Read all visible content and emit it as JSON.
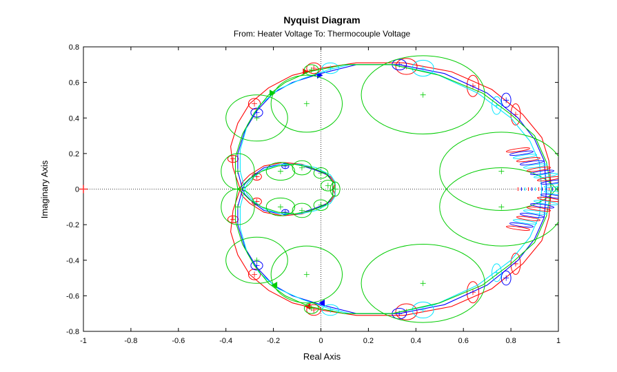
{
  "chart_data": {
    "type": "line",
    "title": "Nyquist Diagram",
    "subtitle": "From: Heater Voltage  To: Thermocouple Voltage",
    "xlabel": "Real Axis",
    "ylabel": "Imaginary Axis",
    "xlim": [
      -1,
      1
    ],
    "ylim": [
      -0.8,
      0.8
    ],
    "xticks": [
      "-1",
      "-0.8",
      "-0.6",
      "-0.4",
      "-0.2",
      "0",
      "0.2",
      "0.4",
      "0.6",
      "0.8",
      "1"
    ],
    "yticks": [
      "-0.8",
      "-0.6",
      "-0.4",
      "-0.2",
      "0",
      "0.2",
      "0.4",
      "0.6",
      "0.8"
    ],
    "critical_point": {
      "x": -1,
      "y": 0,
      "color": "#ff3333"
    },
    "grid": "dotted crosshair at origin",
    "colors": {
      "red": "#ff0000",
      "blue": "#0000ff",
      "cyan": "#00e5ff",
      "green": "#00cc00",
      "axes": "#000000"
    },
    "series": [
      {
        "color": "#ff0000",
        "outer": [
          [
            0.97,
            0
          ],
          [
            0.96,
            0.16
          ],
          [
            0.93,
            0.29
          ],
          [
            0.85,
            0.42
          ],
          [
            0.72,
            0.56
          ],
          [
            0.55,
            0.66
          ],
          [
            0.35,
            0.71
          ],
          [
            0.15,
            0.71
          ],
          [
            0.0,
            0.68
          ],
          [
            -0.12,
            0.64
          ],
          [
            -0.22,
            0.57
          ],
          [
            -0.3,
            0.48
          ],
          [
            -0.35,
            0.37
          ],
          [
            -0.38,
            0.24
          ],
          [
            -0.37,
            0.12
          ],
          [
            -0.34,
            0
          ]
        ],
        "inner": [
          [
            0.05,
            0
          ],
          [
            0.06,
            0.03
          ],
          [
            0.04,
            0.07
          ],
          [
            -0.02,
            0.11
          ],
          [
            -0.08,
            0.14
          ],
          [
            -0.16,
            0.15
          ],
          [
            -0.24,
            0.13
          ],
          [
            -0.3,
            0.08
          ],
          [
            -0.33,
            0.04
          ],
          [
            -0.34,
            0
          ]
        ],
        "arrows": [
          [
            -0.06,
            0.66
          ],
          [
            -0.06,
            -0.66
          ]
        ],
        "uncertainty": [
          {
            "cx": -0.28,
            "cy": 0.48,
            "rx": 0.025,
            "ry": 0.03
          },
          {
            "cx": -0.28,
            "cy": -0.48,
            "rx": 0.025,
            "ry": 0.03
          },
          {
            "cx": -0.37,
            "cy": 0.17,
            "rx": 0.022,
            "ry": 0.02
          },
          {
            "cx": -0.37,
            "cy": -0.17,
            "rx": 0.022,
            "ry": 0.02
          },
          {
            "cx": -0.03,
            "cy": 0.68,
            "rx": 0.03,
            "ry": 0.03
          },
          {
            "cx": -0.03,
            "cy": -0.68,
            "rx": 0.03,
            "ry": 0.03
          },
          {
            "cx": 0.36,
            "cy": 0.69,
            "rx": 0.045,
            "ry": 0.045
          },
          {
            "cx": 0.36,
            "cy": -0.69,
            "rx": 0.045,
            "ry": 0.045
          },
          {
            "cx": 0.64,
            "cy": 0.58,
            "rx": 0.025,
            "ry": 0.06
          },
          {
            "cx": 0.64,
            "cy": -0.58,
            "rx": 0.025,
            "ry": 0.06
          },
          {
            "cx": 0.82,
            "cy": 0.42,
            "rx": 0.02,
            "ry": 0.06
          },
          {
            "cx": 0.82,
            "cy": -0.42,
            "rx": 0.02,
            "ry": 0.06
          },
          {
            "cx": -0.27,
            "cy": 0.07,
            "rx": 0.02,
            "ry": 0.02
          },
          {
            "cx": -0.27,
            "cy": -0.07,
            "rx": 0.02,
            "ry": 0.02
          }
        ]
      },
      {
        "color": "#0000ff",
        "outer": [
          [
            0.95,
            0
          ],
          [
            0.94,
            0.16
          ],
          [
            0.9,
            0.28
          ],
          [
            0.83,
            0.4
          ],
          [
            0.7,
            0.54
          ],
          [
            0.52,
            0.65
          ],
          [
            0.33,
            0.7
          ],
          [
            0.15,
            0.7
          ],
          [
            0.0,
            0.65
          ],
          [
            -0.12,
            0.6
          ],
          [
            -0.2,
            0.54
          ],
          [
            -0.27,
            0.44
          ],
          [
            -0.32,
            0.33
          ],
          [
            -0.35,
            0.2
          ],
          [
            -0.35,
            0.1
          ],
          [
            -0.33,
            0
          ]
        ],
        "inner": [
          [
            0.05,
            0
          ],
          [
            0.05,
            0.04
          ],
          [
            0.03,
            0.08
          ],
          [
            -0.03,
            0.11
          ],
          [
            -0.1,
            0.14
          ],
          [
            -0.17,
            0.14
          ],
          [
            -0.24,
            0.12
          ],
          [
            -0.29,
            0.07
          ],
          [
            -0.32,
            0.03
          ],
          [
            -0.33,
            0
          ]
        ],
        "arrows": [
          [
            0.0,
            0.64
          ],
          [
            0.0,
            -0.64
          ]
        ],
        "uncertainty": [
          {
            "cx": -0.27,
            "cy": 0.43,
            "rx": 0.025,
            "ry": 0.025
          },
          {
            "cx": -0.27,
            "cy": -0.43,
            "rx": 0.025,
            "ry": 0.025
          },
          {
            "cx": 0.33,
            "cy": 0.7,
            "rx": 0.03,
            "ry": 0.03
          },
          {
            "cx": 0.33,
            "cy": -0.7,
            "rx": 0.03,
            "ry": 0.03
          },
          {
            "cx": 0.78,
            "cy": 0.5,
            "rx": 0.02,
            "ry": 0.04
          },
          {
            "cx": 0.78,
            "cy": -0.5,
            "rx": 0.02,
            "ry": 0.04
          },
          {
            "cx": -0.15,
            "cy": 0.13,
            "rx": 0.015,
            "ry": 0.015
          },
          {
            "cx": -0.15,
            "cy": -0.13,
            "rx": 0.015,
            "ry": 0.015
          }
        ]
      },
      {
        "color": "#00e5ff",
        "outer": [
          [
            0.93,
            0
          ],
          [
            0.92,
            0.15
          ],
          [
            0.88,
            0.27
          ],
          [
            0.8,
            0.4
          ],
          [
            0.66,
            0.54
          ],
          [
            0.48,
            0.65
          ],
          [
            0.3,
            0.7
          ],
          [
            0.12,
            0.7
          ],
          [
            0.03,
            0.67
          ],
          [
            -0.08,
            0.62
          ],
          [
            -0.18,
            0.56
          ],
          [
            -0.26,
            0.47
          ],
          [
            -0.31,
            0.36
          ],
          [
            -0.34,
            0.22
          ],
          [
            -0.34,
            0.1
          ],
          [
            -0.32,
            0
          ]
        ],
        "inner": [
          [
            0.06,
            0
          ],
          [
            0.06,
            0.04
          ],
          [
            0.04,
            0.08
          ],
          [
            -0.02,
            0.12
          ],
          [
            -0.09,
            0.14
          ],
          [
            -0.17,
            0.14
          ],
          [
            -0.24,
            0.11
          ],
          [
            -0.29,
            0.06
          ],
          [
            -0.31,
            0.03
          ],
          [
            -0.32,
            0
          ]
        ],
        "arrows": [
          [
            -0.2,
            0.54
          ],
          [
            -0.2,
            -0.54
          ]
        ],
        "uncertainty": [
          {
            "cx": 0.04,
            "cy": 0.68,
            "rx": 0.035,
            "ry": 0.03
          },
          {
            "cx": 0.04,
            "cy": -0.68,
            "rx": 0.035,
            "ry": 0.03
          },
          {
            "cx": 0.43,
            "cy": 0.68,
            "rx": 0.045,
            "ry": 0.045
          },
          {
            "cx": 0.43,
            "cy": -0.68,
            "rx": 0.045,
            "ry": 0.045
          },
          {
            "cx": 0.74,
            "cy": 0.47,
            "rx": 0.02,
            "ry": 0.05
          },
          {
            "cx": 0.74,
            "cy": -0.47,
            "rx": 0.02,
            "ry": 0.05
          }
        ]
      },
      {
        "color": "#00cc00",
        "outer": [
          [
            0.97,
            0
          ],
          [
            0.95,
            0.15
          ],
          [
            0.9,
            0.3
          ],
          [
            0.8,
            0.42
          ],
          [
            0.68,
            0.54
          ],
          [
            0.5,
            0.64
          ],
          [
            0.3,
            0.7
          ],
          [
            0.1,
            0.7
          ],
          [
            -0.05,
            0.66
          ],
          [
            -0.15,
            0.6
          ],
          [
            -0.22,
            0.53
          ],
          [
            -0.28,
            0.43
          ],
          [
            -0.33,
            0.31
          ],
          [
            -0.36,
            0.18
          ],
          [
            -0.36,
            0.08
          ],
          [
            -0.35,
            0
          ]
        ],
        "inner": [
          [
            0.05,
            0
          ],
          [
            0.05,
            0.04
          ],
          [
            0.02,
            0.09
          ],
          [
            -0.04,
            0.12
          ],
          [
            -0.11,
            0.14
          ],
          [
            -0.18,
            0.13
          ],
          [
            -0.25,
            0.1
          ],
          [
            -0.3,
            0.06
          ],
          [
            -0.33,
            0.02
          ],
          [
            -0.35,
            0
          ]
        ],
        "arrows": [
          [
            -0.2,
            0.54
          ],
          [
            -0.2,
            -0.54
          ]
        ],
        "uncertainty": [
          {
            "cx": -0.06,
            "cy": 0.48,
            "rx": 0.15,
            "ry": 0.16
          },
          {
            "cx": -0.06,
            "cy": -0.48,
            "rx": 0.15,
            "ry": 0.16
          },
          {
            "cx": -0.27,
            "cy": 0.4,
            "rx": 0.13,
            "ry": 0.13
          },
          {
            "cx": -0.27,
            "cy": -0.4,
            "rx": 0.13,
            "ry": 0.13
          },
          {
            "cx": -0.35,
            "cy": 0.1,
            "rx": 0.07,
            "ry": 0.1
          },
          {
            "cx": -0.35,
            "cy": -0.1,
            "rx": 0.07,
            "ry": 0.1
          },
          {
            "cx": 0.43,
            "cy": 0.53,
            "rx": 0.26,
            "ry": 0.22
          },
          {
            "cx": 0.43,
            "cy": -0.53,
            "rx": 0.26,
            "ry": 0.22
          },
          {
            "cx": 0.76,
            "cy": 0.1,
            "rx": 0.26,
            "ry": 0.22
          },
          {
            "cx": 0.76,
            "cy": -0.1,
            "rx": 0.26,
            "ry": 0.22
          },
          {
            "cx": -0.17,
            "cy": 0.1,
            "rx": 0.06,
            "ry": 0.05
          },
          {
            "cx": -0.17,
            "cy": -0.1,
            "rx": 0.06,
            "ry": 0.05
          },
          {
            "cx": -0.08,
            "cy": 0.12,
            "rx": 0.04,
            "ry": 0.04
          },
          {
            "cx": -0.08,
            "cy": -0.12,
            "rx": 0.04,
            "ry": 0.04
          },
          {
            "cx": 0.0,
            "cy": 0.09,
            "rx": 0.03,
            "ry": 0.03
          },
          {
            "cx": 0.0,
            "cy": -0.09,
            "rx": 0.03,
            "ry": 0.03
          },
          {
            "cx": 0.03,
            "cy": 0.02,
            "rx": 0.03,
            "ry": 0.03
          },
          {
            "cx": 0.06,
            "cy": 0.0,
            "rx": 0.02,
            "ry": 0.04
          },
          {
            "cx": -0.04,
            "cy": 0.67,
            "rx": 0.03,
            "ry": 0.03
          },
          {
            "cx": -0.04,
            "cy": -0.67,
            "rx": 0.03,
            "ry": 0.03
          }
        ]
      }
    ],
    "high_freq_cluster": {
      "x_start": 0.83,
      "x_end": 0.99,
      "count": 12,
      "colors": [
        "#ff0000",
        "#0000ff",
        "#00e5ff"
      ]
    }
  }
}
